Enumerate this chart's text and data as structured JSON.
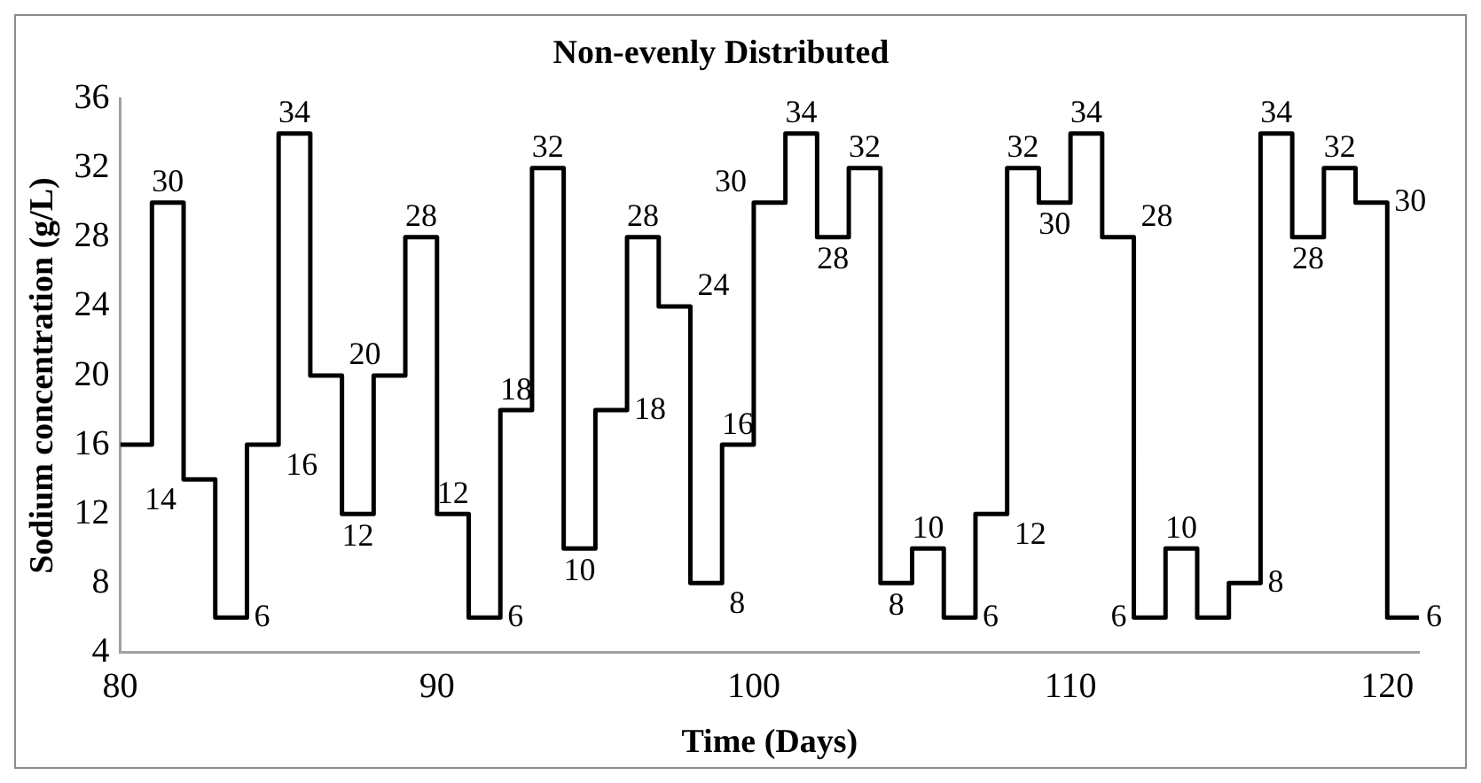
{
  "chart_data": {
    "type": "step",
    "title": "Non-evenly Distributed",
    "xlabel": "Time (Days)",
    "ylabel": "Sodium concentration (g/L)",
    "x": [
      80,
      81,
      82,
      83,
      84,
      85,
      86,
      87,
      88,
      89,
      90,
      91,
      92,
      93,
      94,
      95,
      96,
      97,
      98,
      99,
      100,
      101,
      102,
      103,
      104,
      105,
      106,
      107,
      108,
      109,
      110,
      111,
      112,
      113,
      114,
      115,
      116,
      117,
      118,
      119,
      120,
      121
    ],
    "series": [
      {
        "color": "#000000",
        "values": [
          16,
          30,
          14,
          6,
          16,
          34,
          20,
          12,
          20,
          28,
          12,
          6,
          18,
          32,
          10,
          18,
          28,
          24,
          8,
          16,
          30,
          34,
          28,
          32,
          8,
          10,
          6,
          12,
          32,
          30,
          34,
          28,
          6,
          10,
          6,
          8,
          34,
          28,
          32,
          30,
          6,
          6
        ],
        "value_labels": [
          null,
          "30",
          "14",
          "6",
          "16",
          "34",
          "20",
          "12",
          null,
          "28",
          "12",
          "6",
          "18",
          "32",
          "10",
          "18",
          "28",
          "24",
          "8",
          "16",
          "30",
          "34",
          "28",
          "32",
          "8",
          "10",
          "6",
          "12",
          "32",
          "30",
          "34",
          "28",
          "6",
          "10",
          null,
          "8",
          "34",
          "28",
          "32",
          "30",
          "6",
          null
        ]
      }
    ],
    "xlim": [
      80,
      121
    ],
    "xticks": [
      80,
      90,
      100,
      110,
      120
    ],
    "ylim": [
      4,
      36
    ],
    "yticks": [
      4,
      8,
      12,
      16,
      20,
      24,
      28,
      32,
      36
    ],
    "grid": false,
    "legend": false,
    "marker": "none",
    "line_style": "solid"
  }
}
